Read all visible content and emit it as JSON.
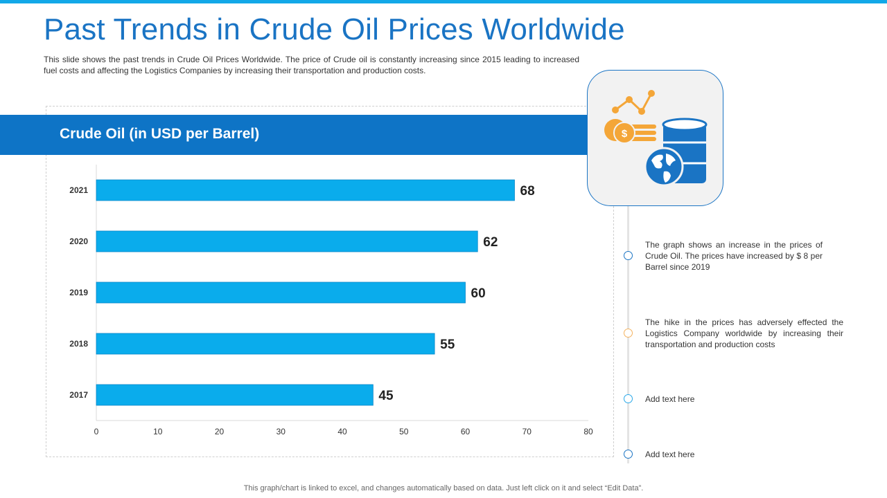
{
  "slide": {
    "title": "Past Trends in Crude Oil Prices Worldwide",
    "description": "This slide shows the past trends in Crude Oil Prices Worldwide. The price of Crude oil is constantly increasing since 2015 leading to increased fuel costs and affecting the Logistics Companies by increasing their transportation and production costs.",
    "footer": "This graph/chart is linked to excel, and changes automatically based on data. Just left click on it and select “Edit Data”."
  },
  "chart_header": "Crude Oil (in USD per Barrel)",
  "chart_data": {
    "type": "bar",
    "orientation": "horizontal",
    "title": "Crude Oil (in USD per Barrel)",
    "categories": [
      "2021",
      "2020",
      "2019",
      "2018",
      "2017"
    ],
    "values": [
      68,
      62,
      60,
      55,
      45
    ],
    "xlim": [
      0,
      80
    ],
    "xticks": [
      0,
      10,
      20,
      30,
      40,
      50,
      60,
      70,
      80
    ],
    "xlabel": "",
    "ylabel": "",
    "grid": false,
    "bar_color": "#0aacec"
  },
  "icon": {
    "names": [
      "trend-line-icon",
      "coins-icon",
      "globe-icon",
      "oil-barrel-icon"
    ],
    "colors": {
      "orange": "#f4a638",
      "blue": "#1a74c4"
    }
  },
  "notes": [
    {
      "text": "The graph shows an increase in the prices of Crude Oil. The prices have increased by $ 8 per Barrel since 2019",
      "color": "#1a74c4"
    },
    {
      "text": "The hike in the prices has adversely effected the Logistics Company worldwide  by increasing their transportation and production costs",
      "color": "#f4b25e"
    },
    {
      "text": "Add text here",
      "color": "#29a8e8"
    },
    {
      "text": "Add text here",
      "color": "#1a74c4"
    }
  ],
  "colors": {
    "accent": "#1a74c4",
    "header_bar": "#0e74c6",
    "top_bar": "#12a8e8"
  }
}
